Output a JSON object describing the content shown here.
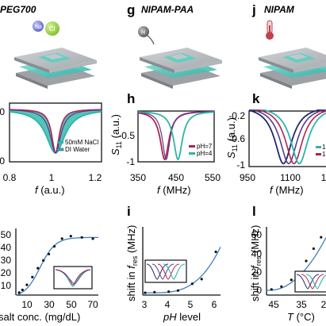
{
  "titles": {
    "left": "PEG700",
    "g": "NIPAM-PAA",
    "j": "NIPAM"
  },
  "letters": {
    "g": "g",
    "j": "j",
    "h": "h",
    "k": "k",
    "i": "i",
    "l": "l"
  },
  "icons": {
    "left": "Na-Cl-ion-icon",
    "g": "H-proton-icon",
    "j": "thermometer-icon"
  },
  "ion_labels": {
    "na": "Na",
    "cl": "Cl",
    "h": "H"
  },
  "colors": {
    "teal": "#2bb5a8",
    "crimson": "#b0244a",
    "purple": "#5b3a8c",
    "navy": "#1f2a6e",
    "blue": "#3d7fc0",
    "device": "#b9bcc0",
    "plate": "#9ea1a6"
  },
  "chart_data": [
    {
      "id": "row2-left",
      "type": "line",
      "xlabel_var": "f",
      "xlabel_unit": "(a.u.)",
      "xticks": [
        "0.8",
        "1",
        "1.2"
      ],
      "yticks": [
        "0",
        "-30"
      ],
      "yticks_visible": [
        "0",
        "30"
      ],
      "xlim": [
        0.8,
        1.2
      ],
      "ylim": [
        -35,
        2
      ],
      "legend": [
        "50mM NaCl",
        "DI Water"
      ],
      "series": [
        {
          "name": "50mM NaCl",
          "center": 1.0,
          "depth": -30,
          "width": 0.05
        },
        {
          "name": "DI Water",
          "center": 1.0,
          "depth": -30,
          "width": 0.02
        }
      ]
    },
    {
      "id": "h",
      "type": "line",
      "ylabel_var": "S",
      "ylabel_sub": "11",
      "ylabel_unit": "(a.u.)",
      "xlabel_var": "f",
      "xlabel_unit": "(MHz)",
      "xticks": [
        "350",
        "450",
        "550"
      ],
      "yticks": [
        "-0.5",
        "-1"
      ],
      "xlim": [
        350,
        550
      ],
      "ylim": [
        -1.05,
        0
      ],
      "legend": [
        "pH=7",
        "pH=4"
      ],
      "series": [
        {
          "name": "pH=7",
          "center": 420,
          "depth": -1,
          "width": 14
        },
        {
          "name": "pH=4",
          "center": 455,
          "depth": -1,
          "width": 14
        }
      ]
    },
    {
      "id": "k",
      "type": "line",
      "ylabel_var": "S",
      "ylabel_sub": "11",
      "ylabel_unit": "(a.u.)",
      "xlabel_var": "f",
      "xlabel_unit": "(MHz)",
      "xticks": [
        "950",
        "1100",
        "1"
      ],
      "yticks": [
        "-0.2",
        "-0.6",
        "-1"
      ],
      "xlim": [
        950,
        1250
      ],
      "ylim": [
        -1.05,
        -0.1
      ],
      "legend": [
        "1",
        "1"
      ],
      "series": [
        {
          "center": 1080,
          "depth": -1,
          "width": 40
        },
        {
          "center": 1100,
          "depth": -1,
          "width": 40
        },
        {
          "center": 1120,
          "depth": -1,
          "width": 40
        },
        {
          "center": 1140,
          "depth": -1,
          "width": 40
        }
      ]
    },
    {
      "id": "row3-left",
      "type": "scatter",
      "xlabel": "salt conc. (mg/dL)",
      "xticks": [
        "10",
        "30",
        "50",
        "70"
      ],
      "yticks": [
        "50",
        "40",
        "30",
        "20",
        "10"
      ],
      "xlim": [
        0,
        75
      ],
      "ylim": [
        0,
        52
      ],
      "points": [
        {
          "x": 3,
          "y": 2
        },
        {
          "x": 6,
          "y": 4
        },
        {
          "x": 10,
          "y": 8
        },
        {
          "x": 15,
          "y": 14
        },
        {
          "x": 20,
          "y": 21
        },
        {
          "x": 25,
          "y": 27
        },
        {
          "x": 30,
          "y": 32
        },
        {
          "x": 35,
          "y": 38
        },
        {
          "x": 42,
          "y": 44
        },
        {
          "x": 50,
          "y": 46
        },
        {
          "x": 60,
          "y": 45
        },
        {
          "x": 70,
          "y": 44
        }
      ]
    },
    {
      "id": "i",
      "type": "scatter",
      "ylabel_pre": "shift in",
      "ylabel_var": "f",
      "ylabel_sub": "res",
      "ylabel_unit": "(MHz)",
      "xlabel_var": "pH",
      "xlabel_rest": "level",
      "xticks": [
        "3",
        "4",
        "5",
        "6"
      ],
      "xlim": [
        2.9,
        6.2
      ],
      "ylim": [
        0,
        60
      ],
      "points": [
        {
          "x": 3.0,
          "y": 2
        },
        {
          "x": 3.4,
          "y": 2.5
        },
        {
          "x": 4.0,
          "y": 3
        },
        {
          "x": 4.4,
          "y": 4
        },
        {
          "x": 5.0,
          "y": 10
        },
        {
          "x": 5.4,
          "y": 14
        },
        {
          "x": 6.0,
          "y": 38
        }
      ]
    },
    {
      "id": "l",
      "type": "scatter",
      "ylabel_pre": "shift in",
      "ylabel_var": "f",
      "ylabel_sub": "res",
      "ylabel_unit": "(MHz)",
      "xlabel_var": "T",
      "xlabel_unit": "(°C)",
      "xticks": [
        "45",
        "35",
        "2"
      ],
      "yticks": [
        "60",
        "40",
        "20",
        "0"
      ],
      "xlim": [
        48,
        24
      ],
      "ylim": [
        -4,
        68
      ],
      "points": [
        {
          "x": 46,
          "y": 2
        },
        {
          "x": 42,
          "y": 5
        },
        {
          "x": 38,
          "y": 12
        },
        {
          "x": 35,
          "y": 20
        },
        {
          "x": 32,
          "y": 32
        },
        {
          "x": 29,
          "y": 45
        },
        {
          "x": 26,
          "y": 57
        }
      ]
    }
  ]
}
